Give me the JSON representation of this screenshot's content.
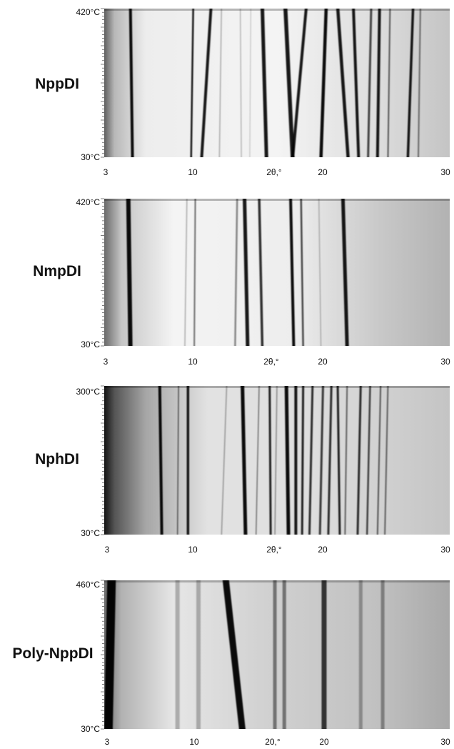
{
  "chart_data": [
    {
      "type": "heatmap",
      "sample": "NppDI",
      "y_top": "420°C",
      "y_bottom": "30°C",
      "x_ticks": [
        "3",
        "10",
        "2θ,°",
        "20",
        "30"
      ],
      "lines": [
        {
          "x0": 5.5,
          "x1": 5.7,
          "w": 4.0,
          "d": 0.95
        },
        {
          "x0": 11.5,
          "x1": 11.3,
          "w": 2.5,
          "d": 0.9
        },
        {
          "x0": 13.2,
          "x1": 12.3,
          "w": 4.0,
          "d": 0.9
        },
        {
          "x0": 14.2,
          "x1": 14.0,
          "w": 1.5,
          "d": 0.3
        },
        {
          "x0": 16.0,
          "x1": 16.1,
          "w": 1.5,
          "d": 0.25
        },
        {
          "x0": 17.0,
          "x1": 16.9,
          "w": 1.2,
          "d": 0.2
        },
        {
          "x0": 18.1,
          "x1": 18.5,
          "w": 5.0,
          "d": 0.9
        },
        {
          "x0": 20.3,
          "x1": 21.0,
          "w": 5.5,
          "d": 0.9
        },
        {
          "x0": 22.3,
          "x1": 21.0,
          "w": 4.0,
          "d": 0.9
        },
        {
          "x0": 24.2,
          "x1": 23.7,
          "w": 4.5,
          "d": 0.95
        },
        {
          "x0": 25.3,
          "x1": 26.3,
          "w": 4.5,
          "d": 0.9
        },
        {
          "x0": 26.8,
          "x1": 27.3,
          "w": 4.0,
          "d": 0.9
        },
        {
          "x0": 28.5,
          "x1": 28.2,
          "w": 3.0,
          "d": 0.7
        },
        {
          "x0": 29.3,
          "x1": 29.1,
          "w": 4.0,
          "d": 0.9
        },
        {
          "x0": 30.3,
          "x1": 30.1,
          "w": 2.0,
          "d": 0.6
        },
        {
          "x0": 32.5,
          "x1": 32.0,
          "w": 3.5,
          "d": 0.9
        },
        {
          "x0": 33.2,
          "x1": 33.0,
          "w": 2.0,
          "d": 0.5
        }
      ]
    },
    {
      "type": "heatmap",
      "sample": "NmpDI",
      "y_top": "420°C",
      "y_bottom": "30°C",
      "x_ticks": [
        "3",
        "10",
        "2θ,°",
        "20",
        "30"
      ],
      "lines": [
        {
          "x0": 5.3,
          "x1": 5.5,
          "w": 6.0,
          "d": 0.95
        },
        {
          "x0": 10.9,
          "x1": 10.7,
          "w": 1.5,
          "d": 0.3
        },
        {
          "x0": 11.7,
          "x1": 11.6,
          "w": 2.0,
          "d": 0.55
        },
        {
          "x0": 15.7,
          "x1": 15.5,
          "w": 2.5,
          "d": 0.45
        },
        {
          "x0": 16.4,
          "x1": 16.7,
          "w": 5.0,
          "d": 0.9
        },
        {
          "x0": 17.8,
          "x1": 18.1,
          "w": 3.5,
          "d": 0.8
        },
        {
          "x0": 20.8,
          "x1": 21.1,
          "w": 4.0,
          "d": 0.95
        },
        {
          "x0": 21.8,
          "x1": 22.0,
          "w": 2.5,
          "d": 0.7
        },
        {
          "x0": 23.5,
          "x1": 23.7,
          "w": 1.5,
          "d": 0.25
        },
        {
          "x0": 25.8,
          "x1": 26.2,
          "w": 5.0,
          "d": 0.9
        }
      ]
    },
    {
      "type": "heatmap",
      "sample": "NphDI",
      "y_top": "300°C",
      "y_bottom": "30°C",
      "x_ticks": [
        "3",
        "10",
        "2θ,°",
        "20",
        "30"
      ],
      "lines": [
        {
          "x0": 8.3,
          "x1": 8.5,
          "w": 4.0,
          "d": 0.95
        },
        {
          "x0": 10.1,
          "x1": 10.0,
          "w": 1.5,
          "d": 0.6
        },
        {
          "x0": 11.0,
          "x1": 11.0,
          "w": 3.5,
          "d": 0.9
        },
        {
          "x0": 14.7,
          "x1": 14.2,
          "w": 1.5,
          "d": 0.35
        },
        {
          "x0": 16.2,
          "x1": 16.5,
          "w": 5.0,
          "d": 0.95
        },
        {
          "x0": 17.8,
          "x1": 17.5,
          "w": 1.5,
          "d": 0.5
        },
        {
          "x0": 18.8,
          "x1": 18.9,
          "w": 3.0,
          "d": 0.85
        },
        {
          "x0": 19.5,
          "x1": 19.3,
          "w": 1.5,
          "d": 0.4
        },
        {
          "x0": 20.4,
          "x1": 20.6,
          "w": 5.0,
          "d": 0.95
        },
        {
          "x0": 21.3,
          "x1": 21.3,
          "w": 4.0,
          "d": 0.9
        },
        {
          "x0": 22.0,
          "x1": 21.9,
          "w": 3.0,
          "d": 0.85
        },
        {
          "x0": 22.9,
          "x1": 22.6,
          "w": 3.0,
          "d": 0.8
        },
        {
          "x0": 23.9,
          "x1": 23.6,
          "w": 3.0,
          "d": 0.75
        },
        {
          "x0": 24.7,
          "x1": 24.4,
          "w": 3.0,
          "d": 0.8
        },
        {
          "x0": 25.3,
          "x1": 25.5,
          "w": 3.0,
          "d": 0.85
        },
        {
          "x0": 26.2,
          "x1": 26.0,
          "w": 2.0,
          "d": 0.55
        },
        {
          "x0": 27.5,
          "x1": 27.2,
          "w": 3.0,
          "d": 0.8
        },
        {
          "x0": 28.4,
          "x1": 28.1,
          "w": 2.5,
          "d": 0.7
        },
        {
          "x0": 29.4,
          "x1": 29.1,
          "w": 2.0,
          "d": 0.6
        },
        {
          "x0": 30.1,
          "x1": 29.8,
          "w": 2.0,
          "d": 0.55
        }
      ]
    },
    {
      "type": "heatmap",
      "sample": "Poly-NppDI",
      "y_top": "460°C",
      "y_bottom": "30°C",
      "x_ticks": [
        "3",
        "10",
        "20,°",
        "20",
        "30"
      ],
      "lines": [
        {
          "x0": 3.7,
          "x1": 3.4,
          "w": 12.0,
          "d": 0.97
        },
        {
          "x0": 10.0,
          "x1": 10.0,
          "w": 6.0,
          "d": 0.25
        },
        {
          "x0": 12.0,
          "x1": 12.0,
          "w": 6.0,
          "d": 0.25
        },
        {
          "x0": 14.6,
          "x1": 16.2,
          "w": 9.0,
          "d": 0.95
        },
        {
          "x0": 19.3,
          "x1": 19.3,
          "w": 5.0,
          "d": 0.45
        },
        {
          "x0": 20.2,
          "x1": 20.2,
          "w": 5.0,
          "d": 0.45
        },
        {
          "x0": 24.0,
          "x1": 24.0,
          "w": 7.0,
          "d": 0.75
        },
        {
          "x0": 27.5,
          "x1": 27.5,
          "w": 5.0,
          "d": 0.3
        },
        {
          "x0": 29.6,
          "x1": 29.6,
          "w": 5.0,
          "d": 0.35
        }
      ]
    }
  ]
}
